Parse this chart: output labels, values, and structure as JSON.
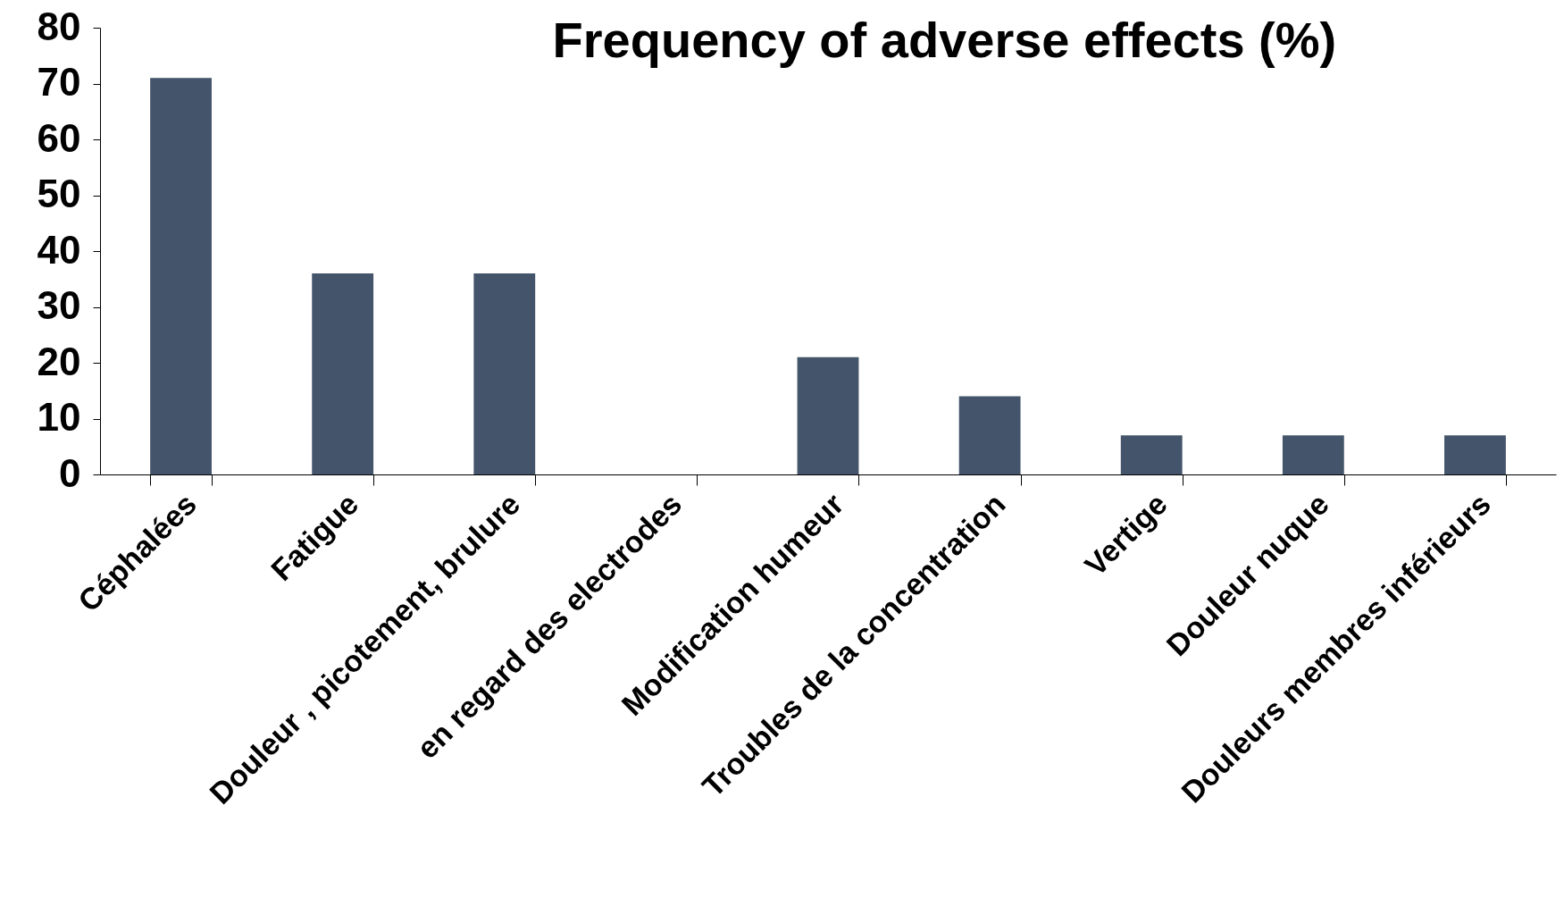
{
  "chart_data": {
    "type": "bar",
    "title": "Frequency of adverse effects (%)",
    "categories": [
      "Céphalées",
      "Fatigue",
      "Douleur , picotement, brulure",
      "en regard des electrodes",
      "Modification humeur",
      "Troubles de la concentration",
      "Vertige",
      "Douleur nuque",
      "Douleurs membres inférieurs"
    ],
    "values": [
      71,
      36,
      36,
      null,
      21,
      14,
      7,
      7,
      7
    ],
    "color": "#44546a",
    "ylim": [
      0,
      80
    ],
    "yticks": [
      0,
      10,
      20,
      30,
      40,
      50,
      60,
      70,
      80
    ],
    "grid": false
  }
}
